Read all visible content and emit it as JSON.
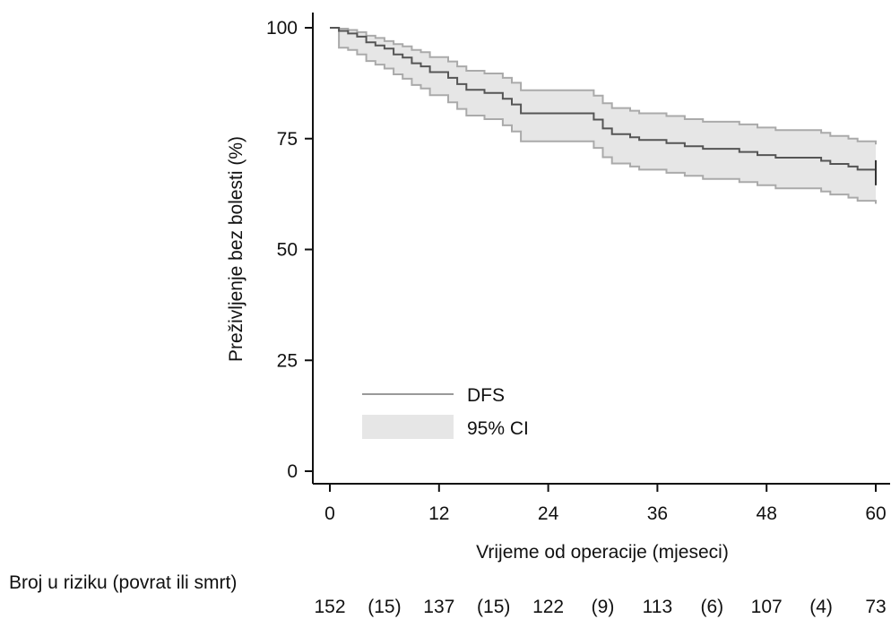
{
  "chart_data": {
    "type": "line",
    "xlabel": "Vrijeme od operacije (mjeseci)",
    "ylabel": "Preživljenje bez bolesti (%)",
    "xlim": [
      0,
      60
    ],
    "ylim": [
      0,
      100
    ],
    "xticks": [
      "0",
      "12",
      "24",
      "36",
      "48",
      "60"
    ],
    "yticks": [
      "0",
      "25",
      "50",
      "75",
      "100"
    ],
    "grid": false,
    "legend": {
      "placement": "bottom-left",
      "entries": [
        {
          "label": "DFS",
          "kind": "line",
          "color": "#999999"
        },
        {
          "label": "95% CI",
          "kind": "area",
          "color": "#e6e6e6"
        }
      ]
    },
    "series": [
      {
        "name": "DFS",
        "color": "#555555",
        "x": [
          0,
          1,
          2,
          3,
          4,
          5,
          6,
          7,
          8,
          9,
          10,
          11,
          12,
          13,
          14,
          15,
          16,
          17,
          18,
          19,
          20,
          21,
          22,
          23,
          24,
          25,
          26,
          27,
          28,
          29,
          30,
          31,
          32,
          33,
          34,
          35,
          36,
          37,
          38,
          39,
          40,
          41,
          42,
          43,
          44,
          45,
          46,
          47,
          48,
          49,
          50,
          51,
          52,
          53,
          54,
          55,
          56,
          57,
          58,
          59,
          60
        ],
        "y": [
          100,
          99.3,
          98.7,
          98,
          96.7,
          96,
          95.3,
          94,
          93.3,
          92,
          91.3,
          90,
          90,
          88.7,
          87.3,
          86,
          86,
          85.3,
          85.3,
          84,
          82.7,
          80.7,
          80.7,
          80.7,
          80.7,
          80.7,
          80.7,
          80.7,
          80.7,
          79.3,
          77.3,
          76,
          76,
          75.3,
          74.7,
          74.7,
          74.7,
          74,
          74,
          73.3,
          73.3,
          72.7,
          72.7,
          72.7,
          72.7,
          72,
          72,
          71.3,
          71.3,
          70.7,
          70.7,
          70.7,
          70.7,
          70.7,
          70,
          69.3,
          69.3,
          68.7,
          68,
          68,
          67.3
        ]
      },
      {
        "name": "95% CI",
        "kind": "band",
        "color": "#e6e6e6",
        "edge_color": "#aaaaaa",
        "x": [
          0,
          1,
          2,
          3,
          4,
          5,
          6,
          7,
          8,
          9,
          10,
          11,
          12,
          13,
          14,
          15,
          16,
          17,
          18,
          19,
          20,
          21,
          22,
          23,
          24,
          25,
          26,
          27,
          28,
          29,
          30,
          31,
          32,
          33,
          34,
          35,
          36,
          37,
          38,
          39,
          40,
          41,
          42,
          43,
          44,
          45,
          46,
          47,
          48,
          49,
          50,
          51,
          52,
          53,
          54,
          55,
          56,
          57,
          58,
          59,
          60
        ],
        "upper": [
          100,
          99.8,
          99.5,
          99,
          98.2,
          97.7,
          97,
          96.3,
          95.8,
          95,
          94.5,
          93.4,
          93.4,
          92.4,
          91.3,
          90.3,
          90.3,
          89.7,
          89.7,
          88.7,
          87.6,
          85.9,
          85.9,
          85.9,
          85.9,
          85.9,
          85.9,
          85.9,
          85.9,
          84.7,
          83,
          81.9,
          81.9,
          81.3,
          80.7,
          80.7,
          80.7,
          80.1,
          80.1,
          79.4,
          79.4,
          78.8,
          78.8,
          78.8,
          78.8,
          78.2,
          78.2,
          77.5,
          77.5,
          76.9,
          76.9,
          76.9,
          76.9,
          76.9,
          76.3,
          75.6,
          75.6,
          75,
          74.4,
          74.4,
          73.7
        ],
        "lower": [
          100,
          95.5,
          95,
          94,
          92.5,
          91.7,
          90.8,
          89.5,
          88.5,
          87.1,
          86.3,
          84.8,
          84.8,
          83.2,
          81.7,
          80.2,
          80.2,
          79.4,
          79.4,
          78,
          76.6,
          74.4,
          74.4,
          74.4,
          74.4,
          74.4,
          74.4,
          74.4,
          74.4,
          72.9,
          70.8,
          69.4,
          69.4,
          68.7,
          68,
          68,
          68,
          67.3,
          67.3,
          66.6,
          66.6,
          65.9,
          65.9,
          65.9,
          65.9,
          65.2,
          65.2,
          64.5,
          64.5,
          63.8,
          63.8,
          63.8,
          63.8,
          63.8,
          63.1,
          62.4,
          62.4,
          61.7,
          61,
          61,
          60.3
        ]
      }
    ],
    "risk_table": {
      "label": "Broj u riziku (povrat ili smrt)",
      "entries": [
        "152",
        "(15)",
        "137",
        "(15)",
        "122",
        "(9)",
        "113",
        "(6)",
        "107",
        "(4)",
        "73"
      ]
    }
  }
}
